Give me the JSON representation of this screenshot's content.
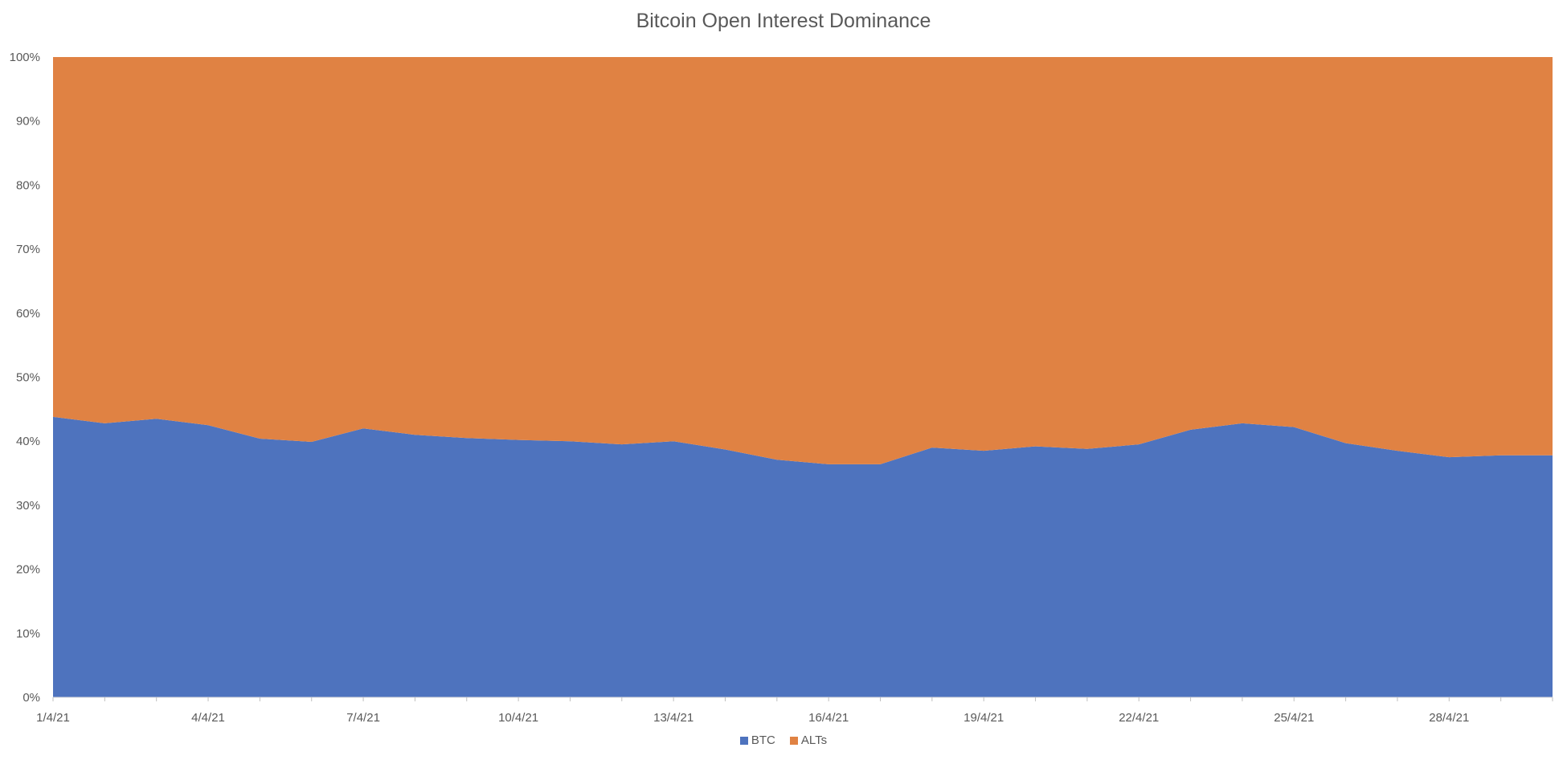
{
  "chart_data": {
    "type": "area",
    "stacked": true,
    "percent_stacked": true,
    "title": "Bitcoin Open Interest Dominance",
    "xlabel": "",
    "ylabel": "",
    "ylim": [
      0,
      100
    ],
    "y_ticks": [
      "0%",
      "10%",
      "20%",
      "30%",
      "40%",
      "50%",
      "60%",
      "70%",
      "80%",
      "90%",
      "100%"
    ],
    "x_tick_labels": [
      "1/4/21",
      "4/4/21",
      "7/4/21",
      "10/4/21",
      "13/4/21",
      "16/4/21",
      "19/4/21",
      "22/4/21",
      "25/4/21",
      "28/4/21"
    ],
    "x": [
      "1/4/21",
      "2/4/21",
      "3/4/21",
      "4/4/21",
      "5/4/21",
      "6/4/21",
      "7/4/21",
      "8/4/21",
      "9/4/21",
      "10/4/21",
      "11/4/21",
      "12/4/21",
      "13/4/21",
      "14/4/21",
      "15/4/21",
      "16/4/21",
      "17/4/21",
      "18/4/21",
      "19/4/21",
      "20/4/21",
      "21/4/21",
      "22/4/21",
      "23/4/21",
      "24/4/21",
      "25/4/21",
      "26/4/21",
      "27/4/21",
      "28/4/21",
      "29/4/21",
      "30/4/21"
    ],
    "grid": false,
    "legend_position": "bottom",
    "series": [
      {
        "name": "BTC",
        "color": "#4E73BE",
        "values": [
          43.8,
          42.8,
          43.5,
          42.5,
          40.4,
          39.9,
          42.0,
          41.0,
          40.5,
          40.2,
          40.0,
          39.5,
          40.0,
          38.7,
          37.1,
          36.4,
          36.4,
          39.0,
          38.5,
          39.2,
          38.8,
          39.5,
          41.8,
          42.8,
          42.2,
          39.7,
          38.5,
          37.5,
          37.8,
          37.8
        ]
      },
      {
        "name": "ALTs",
        "color": "#E08243",
        "values": [
          56.2,
          57.2,
          56.5,
          57.5,
          59.6,
          60.1,
          58.0,
          59.0,
          59.5,
          59.8,
          60.0,
          60.5,
          60.0,
          61.3,
          62.9,
          63.6,
          63.6,
          61.0,
          61.5,
          60.8,
          61.2,
          60.5,
          58.2,
          57.2,
          57.8,
          60.3,
          61.5,
          62.5,
          62.2,
          62.2
        ]
      }
    ]
  }
}
